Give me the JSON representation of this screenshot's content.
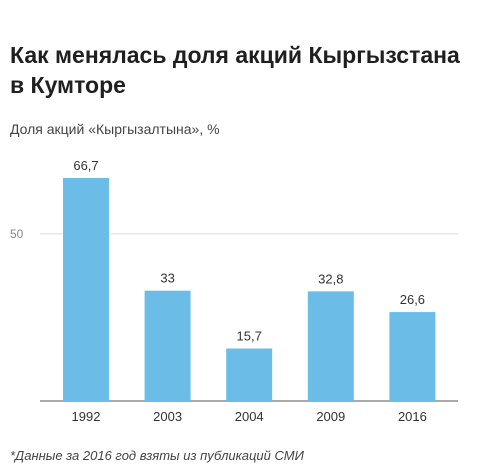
{
  "title": "Как менялась доля акций Кыргызстана в Кумторе",
  "subtitle": "Доля акций «Кыргызалтына», %",
  "footnote": "*Данные за 2016 год взяты из публикаций СМИ",
  "colors": {
    "bar": "#6bbde8",
    "grid": "#dddddd",
    "axis": "#555555"
  },
  "chart_data": {
    "type": "bar",
    "categories": [
      "1992",
      "2003",
      "2004",
      "2009",
      "2016"
    ],
    "values": [
      66.7,
      33,
      15.7,
      32.8,
      26.6
    ],
    "value_labels": [
      "66,7",
      "33",
      "15,7",
      "32,8",
      "26,6"
    ],
    "title": "Как менялась доля акций Кыргызстана в Кумторе",
    "subtitle": "Доля акций «Кыргызалтына», %",
    "ylim": [
      0,
      66.7
    ],
    "yticks": [
      50
    ],
    "ytick_labels": [
      "50"
    ],
    "grid": true
  }
}
